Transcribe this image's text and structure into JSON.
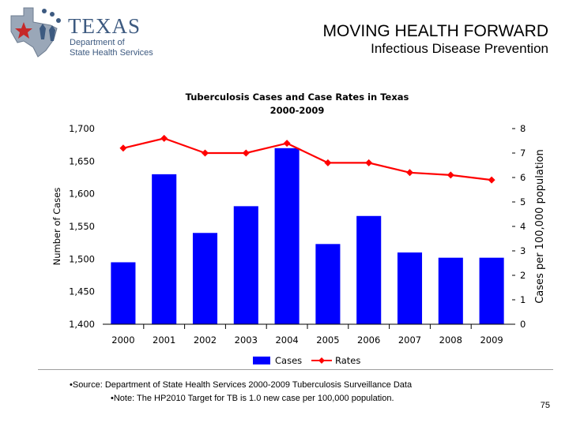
{
  "header": {
    "logo_word": "TEXAS",
    "logo_line1": "Department of",
    "logo_line2": "State Health Services",
    "title": "MOVING HEALTH FORWARD",
    "subtitle": "Infectious Disease Prevention"
  },
  "footnotes": {
    "source": "•Source: Department of State Health Services 2000-2009 Tuberculosis Surveillance Data",
    "note": "•Note: The HP2010 Target for TB is 1.0 new case per 100,000 population."
  },
  "page_number": "75",
  "colors": {
    "bars": "#0000ff",
    "line": "#ff0000",
    "logo": "#3d5a80"
  },
  "chart_data": {
    "type": "bar",
    "title": "Tuberculosis Cases and Case Rates in Texas",
    "subtitle": "2000-2009",
    "categories": [
      "2000",
      "2001",
      "2002",
      "2003",
      "2004",
      "2005",
      "2006",
      "2007",
      "2008",
      "2009"
    ],
    "ylabel": "Number of Cases",
    "y2label": "Cases per 100,000 population",
    "ylim": [
      1400,
      1700
    ],
    "y2lim": [
      0,
      8
    ],
    "yticks": [
      "1,400",
      "1,450",
      "1,500",
      "1,550",
      "1,600",
      "1,650",
      "1,700"
    ],
    "y2ticks": [
      "0",
      "1",
      "2",
      "3",
      "4",
      "5",
      "6",
      "7",
      "8"
    ],
    "series": [
      {
        "name": "Cases",
        "type": "bar",
        "axis": "left",
        "values": [
          1495,
          1630,
          1540,
          1581,
          1670,
          1523,
          1566,
          1510,
          1502,
          1502
        ]
      },
      {
        "name": "Rates",
        "type": "line",
        "axis": "right",
        "values": [
          7.2,
          7.6,
          7.0,
          7.0,
          7.4,
          6.6,
          6.6,
          6.2,
          6.1,
          5.9
        ]
      }
    ],
    "legend_position": "bottom",
    "grid": false
  }
}
